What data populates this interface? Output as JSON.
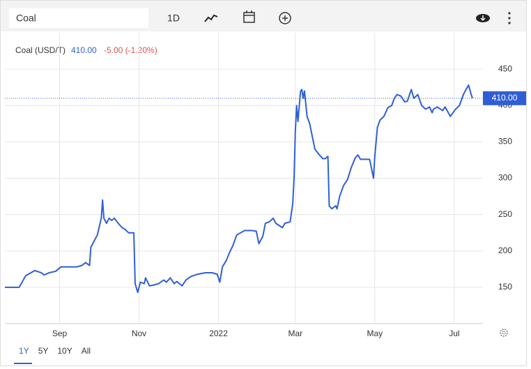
{
  "toolbar": {
    "search": "Coal",
    "interval": "1D"
  },
  "chart_data": {
    "type": "line",
    "legend": {
      "label": "Coal (USD/T)",
      "price": "410.00",
      "change": "-5.00 (-1.20%)"
    },
    "last_value": 410,
    "x": [
      -164,
      -153,
      -148,
      -141,
      -136,
      -134,
      -130,
      -125,
      -121,
      -117,
      -109,
      -105,
      -102,
      -99,
      -98,
      -96,
      -93,
      -90,
      -89,
      -88,
      -86,
      -84,
      -82,
      -80,
      -77,
      -74,
      -72,
      -69,
      -65,
      -64,
      -62,
      -60,
      -57,
      -56,
      -53,
      -50,
      -46,
      -42,
      -40,
      -37,
      -34,
      -32,
      -28,
      -25,
      -21,
      -16,
      -10,
      -5,
      -1,
      1,
      3,
      6,
      9,
      11,
      14,
      17,
      20,
      26,
      29,
      31,
      34,
      36,
      39,
      42,
      44,
      49,
      51,
      55,
      57,
      58,
      59,
      60,
      61,
      63,
      64,
      65,
      66,
      68,
      70,
      74,
      77,
      80,
      82,
      84,
      85,
      87,
      90,
      91,
      93,
      96,
      99,
      102,
      105,
      107,
      109,
      111,
      116,
      119,
      120,
      122,
      124,
      127,
      130,
      133,
      135,
      137,
      140,
      143,
      145,
      148,
      150,
      153,
      156,
      159,
      162,
      164,
      165,
      168,
      172,
      174,
      178,
      180,
      182,
      185,
      188,
      190,
      192,
      194,
      195
    ],
    "series": [
      {
        "name": "Coal",
        "color": "#2f5fd6",
        "values": [
          150,
          150,
          166,
          173,
          170,
          167,
          170,
          172,
          178,
          178,
          178,
          180,
          184,
          180,
          205,
          212,
          222,
          245,
          270,
          245,
          238,
          245,
          242,
          245,
          238,
          232,
          230,
          225,
          225,
          155,
          143,
          157,
          155,
          163,
          152,
          153,
          155,
          160,
          157,
          163,
          155,
          158,
          152,
          160,
          165,
          168,
          170,
          170,
          168,
          157,
          178,
          187,
          200,
          207,
          222,
          225,
          228,
          228,
          227,
          210,
          220,
          238,
          240,
          245,
          238,
          232,
          238,
          240,
          265,
          300,
          365,
          400,
          378,
          420,
          422,
          410,
          420,
          385,
          375,
          340,
          333,
          327,
          327,
          330,
          262,
          258,
          262,
          258,
          275,
          290,
          298,
          315,
          328,
          332,
          326,
          326,
          326,
          300,
          330,
          370,
          380,
          385,
          397,
          400,
          410,
          415,
          413,
          405,
          406,
          422,
          410,
          415,
          400,
          395,
          398,
          390,
          395,
          398,
          393,
          398,
          385,
          390,
          395,
          400,
          415,
          422,
          428,
          415,
          410
        ]
      }
    ],
    "xlim": [
      -164,
      203
    ],
    "xticks": [
      {
        "value": -122,
        "label": "Sep"
      },
      {
        "value": -61,
        "label": "Nov"
      },
      {
        "value": 0,
        "label": "2022"
      },
      {
        "value": 59,
        "label": "Mar"
      },
      {
        "value": 120,
        "label": "May"
      },
      {
        "value": 181,
        "label": "Jul"
      }
    ],
    "ylim": [
      100,
      500
    ],
    "yticks": [
      150,
      200,
      250,
      300,
      350,
      400,
      450
    ],
    "grid": true
  },
  "ranges": [
    "1Y",
    "5Y",
    "10Y",
    "All"
  ]
}
